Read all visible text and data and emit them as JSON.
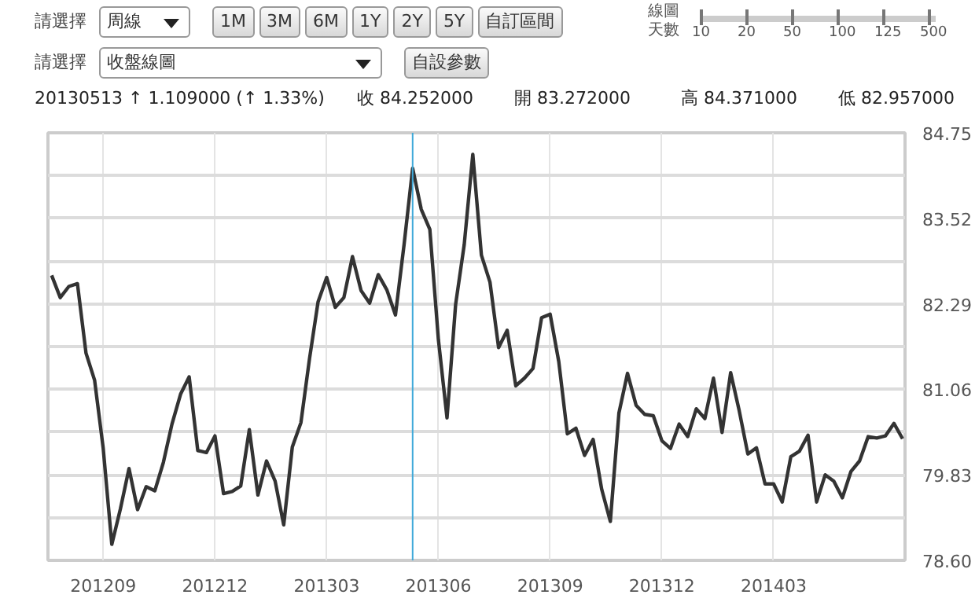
{
  "chart_data": {
    "type": "line",
    "annotations": [
      "請選擇",
      "周線",
      "1M",
      "3M",
      "6M",
      "1Y",
      "2Y",
      "5Y",
      "自訂區間",
      "線圖天數",
      "10",
      "20",
      "50",
      "100",
      "125",
      "500",
      "請選擇",
      "收盤線圖",
      "自設參數",
      "20130513  ↑ 1.109000 (↑ 1.33%)",
      "收 84.252000",
      "開 83.272000",
      "高 84.371000",
      "低 82.957000"
    ],
    "x": [
      "2012-07-23",
      "2012-07-30",
      "2012-08-06",
      "2012-08-13",
      "2012-08-20",
      "2012-08-27",
      "2012-09-03",
      "2012-09-10",
      "2012-09-17",
      "2012-09-24",
      "2012-10-01",
      "2012-10-08",
      "2012-10-15",
      "2012-10-22",
      "2012-10-29",
      "2012-11-05",
      "2012-11-12",
      "2012-11-19",
      "2012-11-26",
      "2012-12-03",
      "2012-12-10",
      "2012-12-17",
      "2012-12-24",
      "2012-12-31",
      "2013-01-07",
      "2013-01-14",
      "2013-01-21",
      "2013-01-28",
      "2013-02-04",
      "2013-02-11",
      "2013-02-18",
      "2013-02-25",
      "2013-03-04",
      "2013-03-11",
      "2013-03-18",
      "2013-03-25",
      "2013-04-01",
      "2013-04-08",
      "2013-04-15",
      "2013-04-22",
      "2013-04-29",
      "2013-05-06",
      "2013-05-13",
      "2013-05-20",
      "2013-05-27",
      "2013-06-03",
      "2013-06-10",
      "2013-06-17",
      "2013-06-24",
      "2013-07-01",
      "2013-07-08",
      "2013-07-15",
      "2013-07-22",
      "2013-07-29",
      "2013-08-05",
      "2013-08-12",
      "2013-08-19",
      "2013-08-26",
      "2013-09-02",
      "2013-09-09",
      "2013-09-16",
      "2013-09-23",
      "2013-09-30",
      "2013-10-07",
      "2013-10-14",
      "2013-10-21",
      "2013-10-28",
      "2013-11-04",
      "2013-11-11",
      "2013-11-18",
      "2013-11-25",
      "2013-12-02",
      "2013-12-09",
      "2013-12-16",
      "2013-12-23",
      "2013-12-30",
      "2014-01-06",
      "2014-01-13",
      "2014-01-20",
      "2014-01-27",
      "2014-02-03",
      "2014-02-10",
      "2014-02-17",
      "2014-02-24",
      "2014-03-03",
      "2014-03-10",
      "2014-03-17",
      "2014-03-24",
      "2014-03-31",
      "2014-04-07",
      "2014-04-14",
      "2014-04-21",
      "2014-04-28",
      "2014-05-05",
      "2014-05-12",
      "2014-05-19",
      "2014-05-26",
      "2014-06-02",
      "2014-06-09",
      "2014-06-16"
    ],
    "series": [
      {
        "color": "#333333",
        "values": [
          82.7,
          82.38,
          82.54,
          82.58,
          81.58,
          81.19,
          80.21,
          78.83,
          79.34,
          79.92,
          79.33,
          79.66,
          79.6,
          80.01,
          80.56,
          80.99,
          81.24,
          80.18,
          80.15,
          80.39,
          79.56,
          79.59,
          79.67,
          80.48,
          79.54,
          80.03,
          79.74,
          79.11,
          80.23,
          80.58,
          81.5,
          82.32,
          82.67,
          82.24,
          82.38,
          82.97,
          82.48,
          82.3,
          82.71,
          82.49,
          82.13,
          83.14,
          84.24,
          83.65,
          83.36,
          81.77,
          80.65,
          82.28,
          83.14,
          84.44,
          82.99,
          82.6,
          81.66,
          81.91,
          81.11,
          81.22,
          81.36,
          82.09,
          82.14,
          81.46,
          80.42,
          80.5,
          80.11,
          80.34,
          79.62,
          79.16,
          80.72,
          81.29,
          80.83,
          80.7,
          80.68,
          80.32,
          80.21,
          80.56,
          80.38,
          80.78,
          80.64,
          81.22,
          80.44,
          81.3,
          80.75,
          80.13,
          80.22,
          79.7,
          79.7,
          79.44,
          80.09,
          80.17,
          80.4,
          79.44,
          79.83,
          79.74,
          79.5,
          79.88,
          80.03,
          80.38,
          80.36,
          80.39,
          80.57,
          80.35
        ]
      }
    ],
    "xlim": [
      "2012-07-20",
      "2014-06-18"
    ],
    "xticks": [
      {
        "value": "2012-09-03",
        "label": "201209"
      },
      {
        "value": "2012-12-03",
        "label": "201212"
      },
      {
        "value": "2013-03-04",
        "label": "201303"
      },
      {
        "value": "2013-06-03",
        "label": "201306"
      },
      {
        "value": "2013-09-02",
        "label": "201309"
      },
      {
        "value": "2013-12-02",
        "label": "201312"
      },
      {
        "value": "2014-03-03",
        "label": "201403"
      }
    ],
    "ylim": [
      78.6,
      84.75
    ],
    "yticks": [
      {
        "value": 78.6,
        "label": "78.60"
      },
      {
        "value": 79.215,
        "label": null
      },
      {
        "value": 79.83,
        "label": "79.83"
      },
      {
        "value": 80.445,
        "label": null
      },
      {
        "value": 81.06,
        "label": "81.06"
      },
      {
        "value": 81.675,
        "label": null
      },
      {
        "value": 82.29,
        "label": "82.29"
      },
      {
        "value": 82.905,
        "label": null
      },
      {
        "value": 83.52,
        "label": "83.52"
      },
      {
        "value": 84.135,
        "label": null
      },
      {
        "value": 84.75,
        "label": "84.75"
      }
    ],
    "ref_lines": [
      {
        "axis": "x",
        "value": "2013-05-13",
        "color": "#3fa9d9"
      }
    ],
    "grid": true
  }
}
